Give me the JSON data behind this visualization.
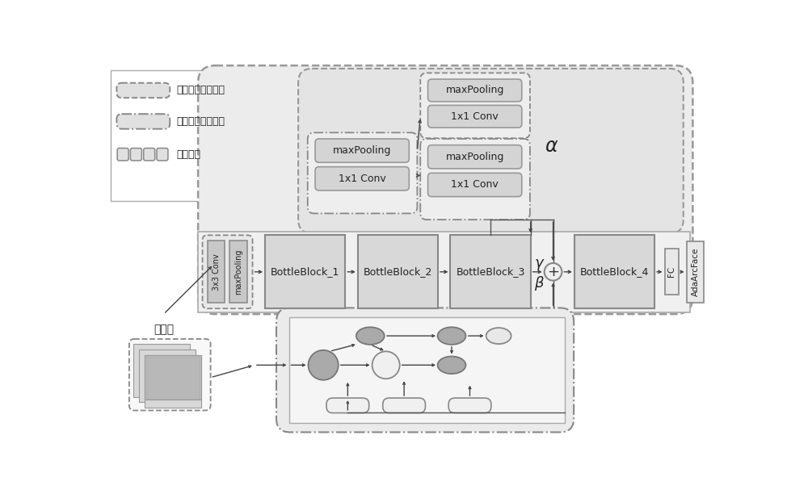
{
  "bg_color": "#ffffff",
  "fig_w": 10.0,
  "fig_h": 6.12,
  "legend_label1": "空间特征融合模块",
  "legend_label2": "时间特征提取模块",
  "legend_label3": "骨干网络",
  "label_keyframe": "关键帧",
  "gray_dark": "#aaaaaa",
  "gray_mid": "#c8c8c8",
  "gray_light": "#e0e0e0",
  "gray_box": "#d4d4d4",
  "gray_outer": "#e8e8e8",
  "white": "#ffffff",
  "edge_dark": "#888888",
  "edge_light": "#aaaaaa",
  "text_color": "#222222",
  "arrow_color": "#444444"
}
